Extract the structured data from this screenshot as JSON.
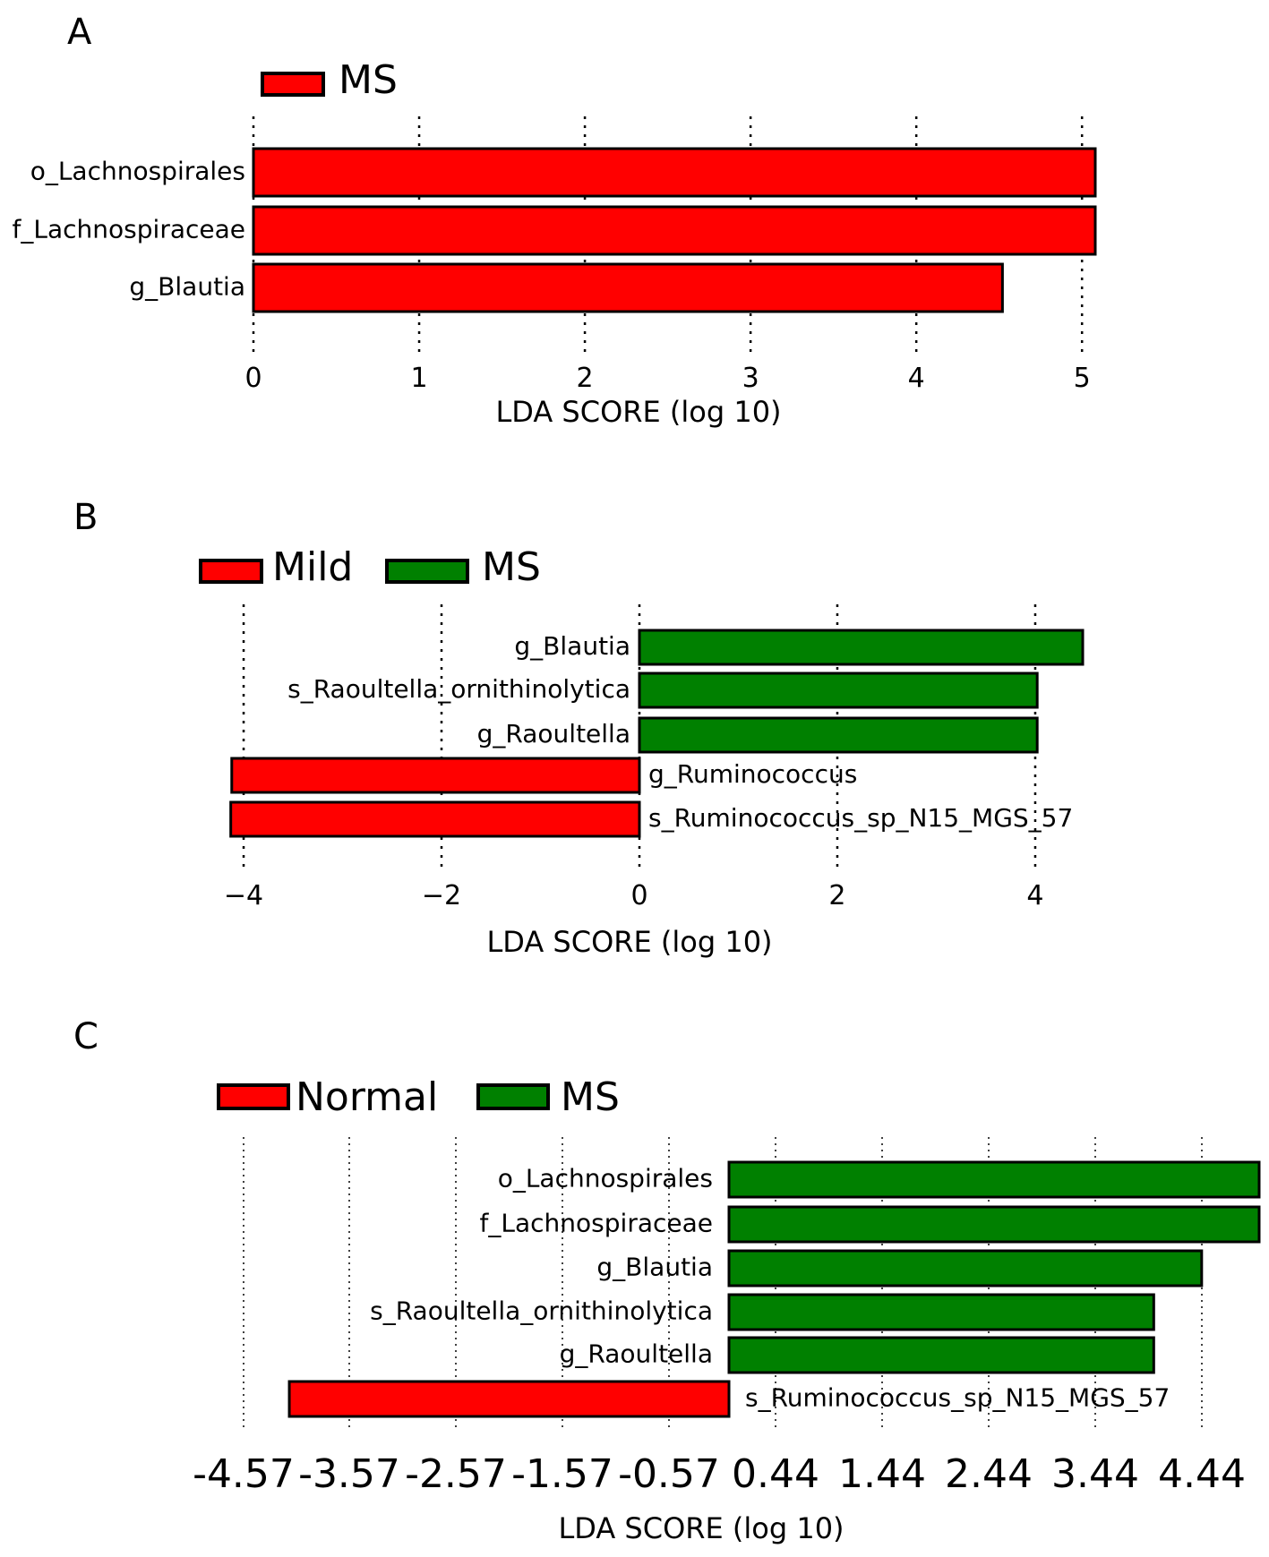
{
  "colors": {
    "red": "#ff0000",
    "green": "#008000"
  },
  "chart_data": [
    {
      "type": "bar",
      "orientation": "horizontal",
      "panel_label": "A",
      "legend": [
        {
          "name": "MS",
          "color": "#ff0000"
        }
      ],
      "categories": [
        "o_Lachnospirales",
        "f_Lachnospiraceae",
        "g_Blautia"
      ],
      "values": [
        5.08,
        5.08,
        4.52
      ],
      "bar_groups": [
        "MS",
        "MS",
        "MS"
      ],
      "xticks": [
        0,
        1,
        2,
        3,
        4,
        5
      ],
      "xtick_labels": [
        "0",
        "1",
        "2",
        "3",
        "4",
        "5"
      ],
      "xlim": [
        0,
        5.08
      ],
      "xlabel": "LDA SCORE (log 10)",
      "grid": true
    },
    {
      "type": "bar",
      "orientation": "horizontal",
      "panel_label": "B",
      "legend": [
        {
          "name": "Mild",
          "color": "#ff0000"
        },
        {
          "name": "MS",
          "color": "#008000"
        }
      ],
      "categories": [
        "g_Blautia",
        "s_Raoultella_ornithinolytica",
        "g_Raoultella",
        "g_Ruminococcus",
        "s_Ruminococcus_sp_N15_MGS_57"
      ],
      "values": [
        4.48,
        4.02,
        4.02,
        -4.12,
        -4.13
      ],
      "bar_groups": [
        "MS",
        "MS",
        "MS",
        "Mild",
        "Mild"
      ],
      "xticks": [
        -4,
        -2,
        0,
        2,
        4
      ],
      "xtick_labels": [
        "−4",
        "−2",
        "0",
        "2",
        "4"
      ],
      "xlim": [
        -4.13,
        4.48
      ],
      "xlabel": "LDA SCORE (log 10)",
      "grid": true
    },
    {
      "type": "bar",
      "orientation": "horizontal",
      "panel_label": "C",
      "legend": [
        {
          "name": "Normal",
          "color": "#ff0000"
        },
        {
          "name": "MS",
          "color": "#008000"
        }
      ],
      "categories": [
        "o_Lachnospirales",
        "f_Lachnospiraceae",
        "g_Blautia",
        "s_Raoultella_ornithinolytica",
        "g_Raoultella",
        "s_Ruminococcus_sp_N15_MGS_57"
      ],
      "values": [
        4.98,
        4.98,
        4.44,
        3.99,
        3.99,
        -4.13
      ],
      "bar_groups": [
        "MS",
        "MS",
        "MS",
        "MS",
        "MS",
        "Normal"
      ],
      "xticks": [
        -4.57,
        -3.57,
        -2.57,
        -1.57,
        -0.57,
        0.44,
        1.44,
        2.44,
        3.44,
        4.44
      ],
      "xtick_labels": [
        "-4.57",
        "-3.57",
        "-2.57",
        "-1.57",
        "-0.57",
        "0.44",
        "1.44",
        "2.44",
        "3.44",
        "4.44"
      ],
      "xlim": [
        -4.57,
        4.98
      ],
      "xlabel": "LDA SCORE (log 10)",
      "grid": true
    }
  ]
}
